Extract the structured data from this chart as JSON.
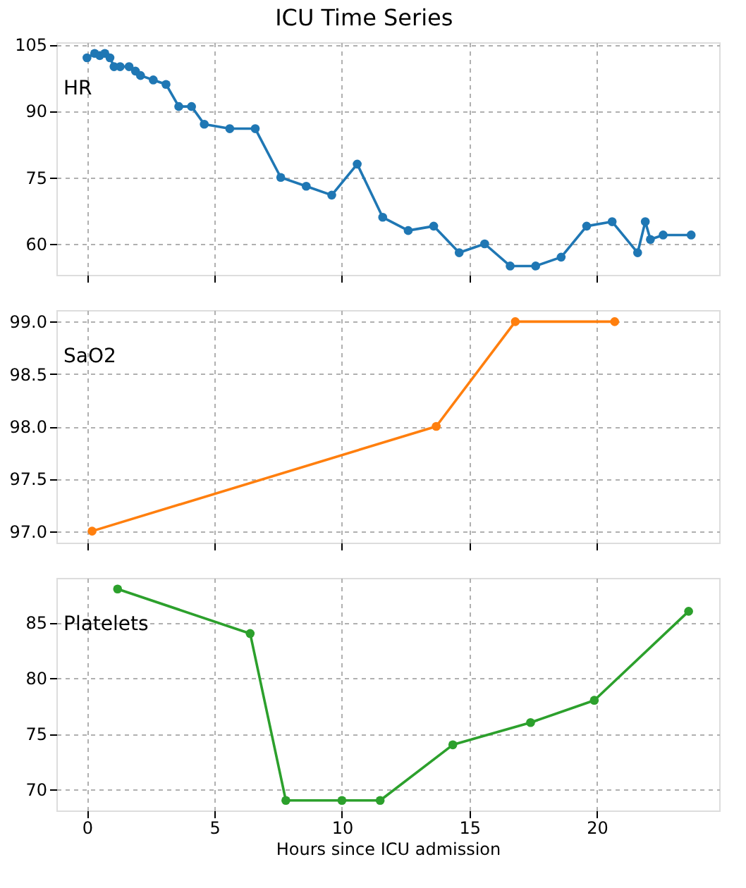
{
  "chart_data": [
    {
      "type": "line",
      "title": "ICU Time Series",
      "xlim": [
        -1.2,
        24.8
      ],
      "xticks": [
        0,
        5,
        10,
        15,
        20
      ],
      "ylim": [
        53,
        105.5
      ],
      "yticks": [
        60,
        75,
        90,
        105
      ],
      "grid": true,
      "marker": "circle",
      "legend": false,
      "tick_labels": "y",
      "series": [
        {
          "name": "HR",
          "color": "#1f77b4",
          "x": [
            0.0,
            0.3,
            0.5,
            0.7,
            0.9,
            1.06,
            1.3,
            1.65,
            1.9,
            2.1,
            2.6,
            3.1,
            3.6,
            4.1,
            4.6,
            5.6,
            6.6,
            7.6,
            8.6,
            9.6,
            10.6,
            11.6,
            12.6,
            13.6,
            14.6,
            15.6,
            16.6,
            17.6,
            18.6,
            19.6,
            20.6,
            21.6,
            21.9,
            22.1,
            22.6,
            23.7
          ],
          "values": [
            102,
            103,
            102.5,
            103,
            102,
            100,
            100,
            100,
            99,
            98,
            97,
            96,
            91,
            91,
            87,
            86,
            86,
            75,
            73,
            71,
            78,
            66,
            63,
            64,
            58,
            60,
            55,
            55,
            57,
            64,
            65,
            58,
            65,
            61,
            62,
            62
          ]
        }
      ]
    },
    {
      "type": "line",
      "xlim": [
        -1.2,
        24.8
      ],
      "xticks": [
        0,
        5,
        10,
        15,
        20
      ],
      "ylim": [
        96.89,
        99.11
      ],
      "yticks": [
        {
          "value": 97,
          "label": "97.0"
        },
        97.5,
        {
          "value": 98,
          "label": "98.0"
        },
        98.5,
        {
          "value": 99,
          "label": "99.0"
        }
      ],
      "grid": true,
      "marker": "circle",
      "legend": false,
      "tick_labels": "y",
      "series": [
        {
          "name": "SaO2",
          "color": "#ff7f0e",
          "x": [
            0.2,
            13.7,
            16.8,
            20.7
          ],
          "values": [
            97,
            98,
            99,
            99
          ]
        }
      ]
    },
    {
      "type": "line",
      "xlabel": "Hours since ICU admission",
      "xlim": [
        -1.2,
        24.8
      ],
      "xticks": [
        0,
        5,
        10,
        15,
        20
      ],
      "ylim": [
        68.1,
        89
      ],
      "yticks": [
        70,
        75,
        80,
        85
      ],
      "grid": true,
      "marker": "circle",
      "legend": false,
      "series": [
        {
          "name": "Platelets",
          "color": "#2ca02c",
          "x": [
            1.2,
            6.4,
            7.8,
            10.0,
            11.5,
            14.35,
            17.4,
            19.9,
            23.6
          ],
          "values": [
            88,
            84,
            69,
            69,
            69,
            74,
            76,
            78,
            86
          ]
        }
      ]
    }
  ]
}
